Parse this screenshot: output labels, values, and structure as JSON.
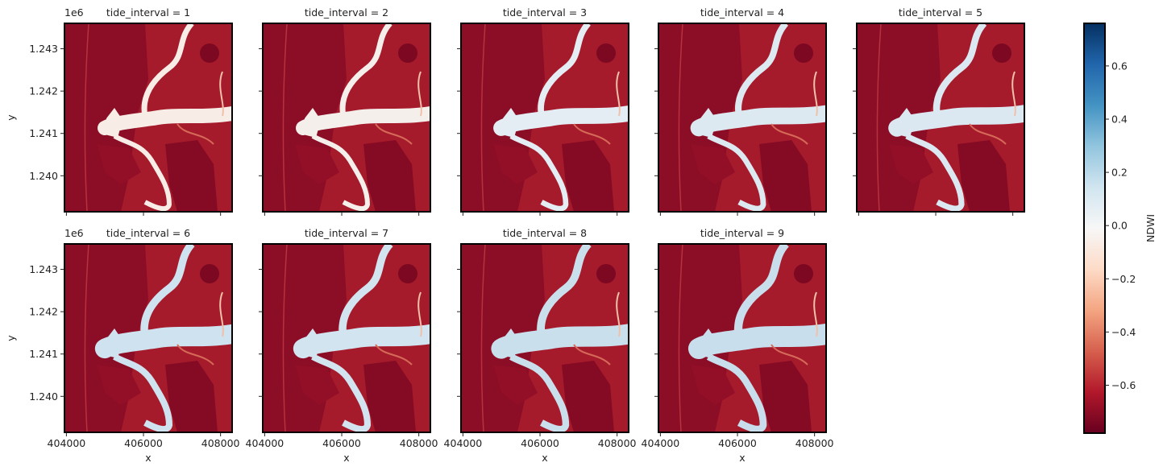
{
  "chart_data": {
    "type": "heatmap",
    "layout": "facet grid, 2 rows x 5 columns",
    "facet_variable": "tide_interval",
    "panels": [
      {
        "title": "tide_interval = 1",
        "tide_interval": 1
      },
      {
        "title": "tide_interval = 2",
        "tide_interval": 2
      },
      {
        "title": "tide_interval = 3",
        "tide_interval": 3
      },
      {
        "title": "tide_interval = 4",
        "tide_interval": 4
      },
      {
        "title": "tide_interval = 5",
        "tide_interval": 5
      },
      {
        "title": "tide_interval = 6",
        "tide_interval": 6
      },
      {
        "title": "tide_interval = 7",
        "tide_interval": 7
      },
      {
        "title": "tide_interval = 8",
        "tide_interval": 8
      },
      {
        "title": "tide_interval = 9",
        "tide_interval": 9
      }
    ],
    "xlabel": "x",
    "ylabel": "y",
    "xlim": [
      403950,
      408300
    ],
    "ylim": [
      1239150,
      1243600
    ],
    "x_ticks": [
      404000,
      406000,
      408000
    ],
    "x_tick_labels": [
      "404000",
      "406000",
      "408000"
    ],
    "y_ticks": [
      1240000,
      1241000,
      1242000,
      1243000
    ],
    "y_tick_labels": [
      "1.240",
      "1.241",
      "1.242",
      "1.243"
    ],
    "y_offset_label": "1e6",
    "colorbar": {
      "label": "NDWI",
      "colormap": "RdBu",
      "range": [
        -0.78,
        0.76
      ],
      "ticks": [
        -0.6,
        -0.4,
        -0.2,
        0.0,
        0.2,
        0.4,
        0.6
      ],
      "tick_labels": [
        "−0.6",
        "−0.4",
        "−0.2",
        "0.0",
        "0.2",
        "0.4",
        "0.6"
      ]
    },
    "grid": false
  }
}
